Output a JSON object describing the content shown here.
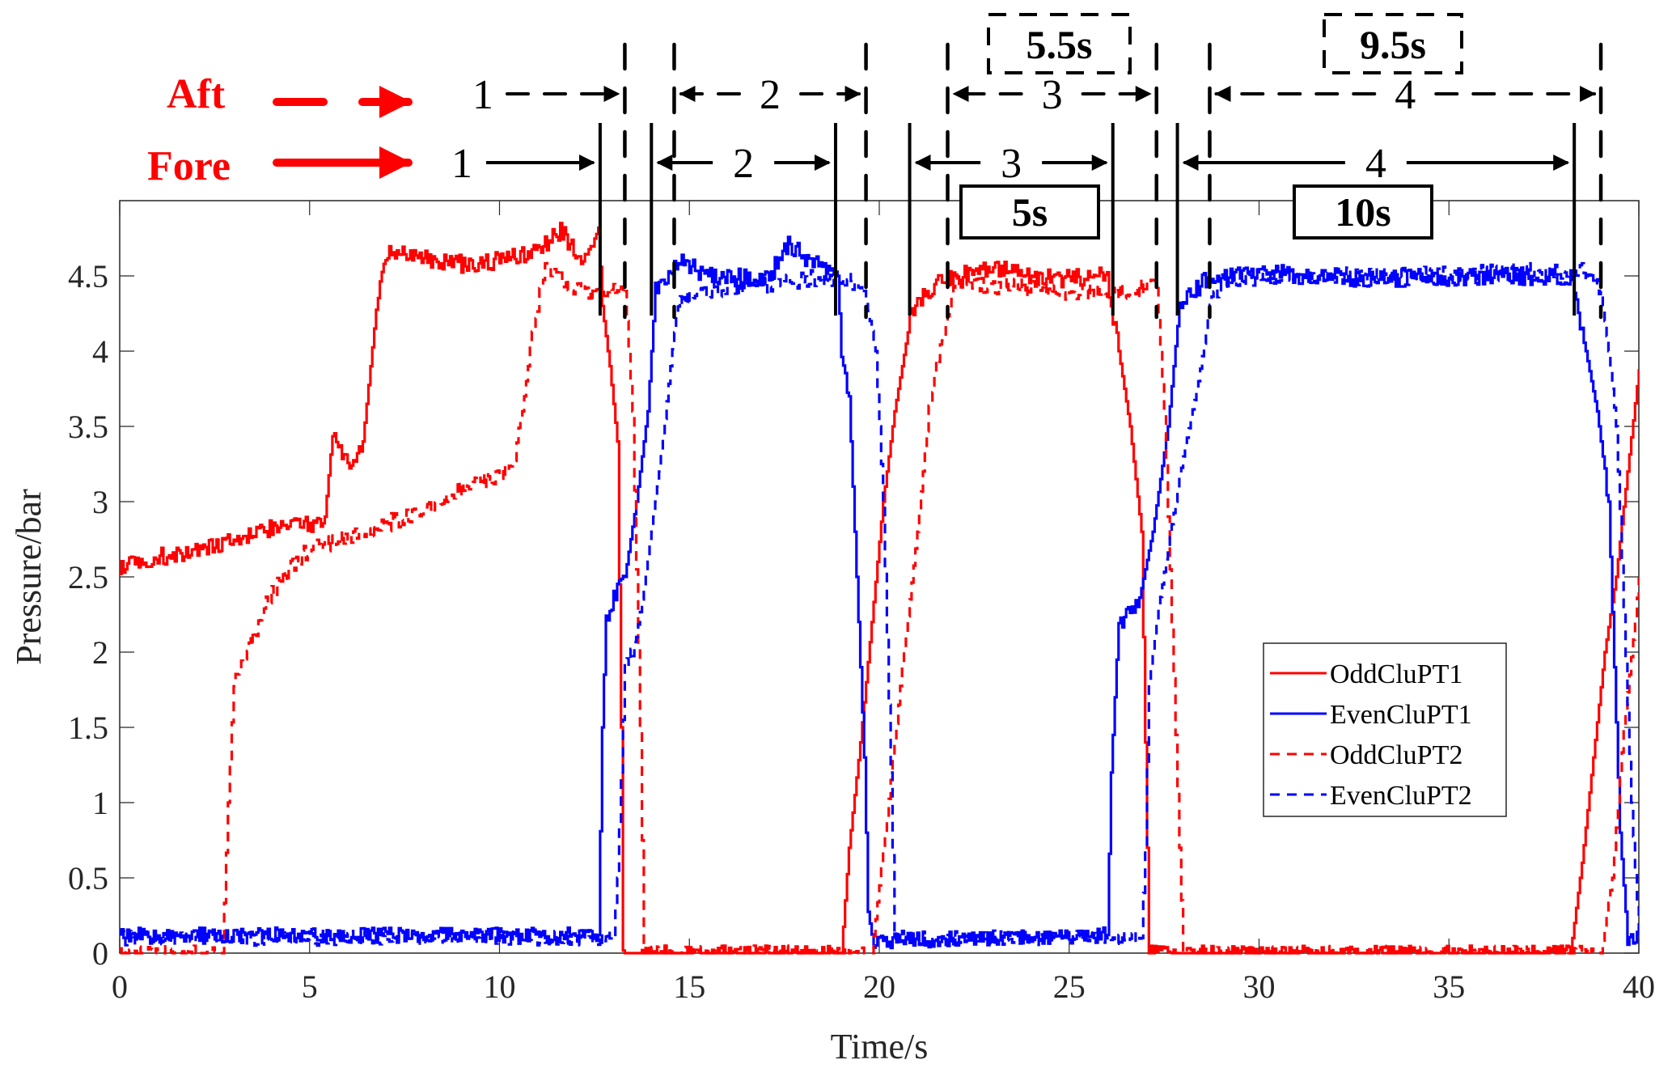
{
  "chart_data": {
    "type": "line",
    "xlabel": "Time/s",
    "ylabel": "Pressure/bar",
    "xlim": [
      0,
      40
    ],
    "ylim": [
      0,
      4.95
    ],
    "xticks": [
      0,
      5,
      10,
      15,
      20,
      25,
      30,
      35,
      40
    ],
    "xtick_labels": [
      "0",
      "5",
      "10",
      "15",
      "20",
      "25",
      "30",
      "35",
      "40"
    ],
    "yticks": [
      0,
      0.5,
      1,
      1.5,
      2,
      2.5,
      3,
      3.5,
      4,
      4.5
    ],
    "ytick_labels": [
      "0",
      "0.5",
      "1",
      "1.5",
      "2",
      "2.5",
      "3",
      "3.5",
      "4",
      "4.5"
    ],
    "grid": false,
    "legend_position": "lower-right",
    "colors": {
      "odd": "#ff0000",
      "even": "#0000ff",
      "annotation": "#000000",
      "axis": "#262626"
    },
    "series": [
      {
        "name": "OddCluPT1",
        "color": "#ff0000",
        "style": "solid",
        "x": [
          0,
          1,
          2,
          3,
          4,
          5,
          5.4,
          5.6,
          5.8,
          6.1,
          6.4,
          6.6,
          6.8,
          7.0,
          7.2,
          8,
          9,
          10,
          11,
          11.6,
          12.2,
          12.6,
          12.7,
          12.9,
          13.1,
          13.2,
          13.25,
          19.0,
          19.2,
          19.5,
          19.8,
          20.1,
          20.4,
          20.8,
          21.2,
          22,
          23,
          24,
          25,
          26,
          26.1,
          26.3,
          26.6,
          26.9,
          27.0,
          27.1,
          38.2,
          38.5,
          38.8,
          39.1,
          39.4,
          39.7,
          40
        ],
        "y": [
          2.58,
          2.63,
          2.68,
          2.74,
          2.82,
          2.85,
          2.9,
          3.45,
          3.35,
          3.22,
          3.4,
          3.9,
          4.4,
          4.65,
          4.66,
          4.62,
          4.58,
          4.6,
          4.68,
          4.8,
          4.6,
          4.82,
          4.3,
          3.9,
          3.4,
          1.5,
          0.0,
          0.0,
          0.7,
          1.4,
          2.2,
          3.0,
          3.6,
          4.2,
          4.4,
          4.5,
          4.55,
          4.5,
          4.48,
          4.5,
          4.3,
          4.0,
          3.5,
          2.8,
          1.4,
          0.0,
          0.0,
          0.6,
          1.3,
          2.0,
          2.5,
          3.2,
          3.88
        ]
      },
      {
        "name": "EvenCluPT1",
        "color": "#0000ff",
        "style": "solid",
        "x": [
          0,
          12.6,
          12.7,
          12.8,
          13.0,
          13.3,
          13.6,
          13.9,
          14.1,
          14.3,
          14.7,
          15.5,
          17,
          17.6,
          18.5,
          18.9,
          19.0,
          19.2,
          19.4,
          19.6,
          19.7,
          19.8,
          26.0,
          26.1,
          26.3,
          26.8,
          27.2,
          27.6,
          27.9,
          28.3,
          28.7,
          30,
          33,
          36,
          38.2,
          38.4,
          38.6,
          38.9,
          39.1,
          39.2,
          39.5,
          39.7,
          40
        ],
        "y": [
          0.12,
          0.12,
          1.5,
          2.2,
          2.35,
          2.5,
          3.0,
          3.6,
          4.4,
          4.45,
          4.6,
          4.5,
          4.48,
          4.7,
          4.55,
          4.5,
          4.0,
          3.7,
          2.5,
          1.3,
          0.3,
          0.08,
          0.12,
          1.2,
          2.2,
          2.3,
          2.8,
          3.5,
          4.3,
          4.4,
          4.5,
          4.52,
          4.48,
          4.5,
          4.5,
          4.25,
          4.0,
          3.6,
          3.2,
          3.0,
          0.8,
          0.1,
          0.12
        ]
      },
      {
        "name": "OddCluPT2",
        "color": "#ff0000",
        "style": "dashed",
        "x": [
          0,
          2.7,
          2.85,
          3.0,
          3.5,
          4,
          5,
          6,
          7,
          8,
          9,
          10,
          10.4,
          10.6,
          10.8,
          11.0,
          11.2,
          12,
          13,
          13.3,
          13.5,
          13.7,
          13.8,
          19.8,
          20.2,
          20.6,
          21.0,
          21.3,
          21.5,
          21.8,
          22,
          24,
          26,
          27.3,
          27.5,
          27.7,
          27.9,
          28.0,
          39.0,
          39.3,
          39.6,
          39.9,
          40
        ],
        "y": [
          0.0,
          0.0,
          1.0,
          1.8,
          2.1,
          2.4,
          2.7,
          2.75,
          2.85,
          2.95,
          3.1,
          3.15,
          3.3,
          3.6,
          4.0,
          4.3,
          4.55,
          4.4,
          4.42,
          4.4,
          3.6,
          1.5,
          0.0,
          0.0,
          0.9,
          1.9,
          2.8,
          3.6,
          3.9,
          4.2,
          4.45,
          4.42,
          4.38,
          4.45,
          3.6,
          2.2,
          0.7,
          0.0,
          0.0,
          0.5,
          1.5,
          2.2,
          2.5
        ]
      },
      {
        "name": "EvenCluPT2",
        "color": "#0000ff",
        "style": "dashed",
        "x": [
          0,
          13.0,
          13.1,
          13.3,
          13.6,
          13.9,
          14.2,
          14.5,
          14.7,
          15.5,
          17,
          19,
          19.6,
          19.9,
          20.1,
          20.3,
          20.4,
          26.9,
          27.0,
          27.1,
          27.3,
          27.6,
          28.0,
          28.4,
          28.7,
          29.0,
          30,
          35,
          38.5,
          39.0,
          39.2,
          39.4,
          39.6,
          39.8,
          40
        ],
        "y": [
          0.1,
          0.1,
          0.5,
          1.9,
          2.1,
          2.6,
          3.2,
          3.9,
          4.35,
          4.4,
          4.45,
          4.5,
          4.4,
          4.0,
          3.0,
          1.2,
          0.1,
          0.1,
          0.7,
          1.8,
          2.2,
          2.7,
          3.3,
          3.8,
          4.3,
          4.45,
          4.5,
          4.5,
          4.55,
          4.4,
          4.0,
          3.5,
          2.3,
          1.0,
          0.1
        ]
      }
    ],
    "annotations": {
      "aft_label": "Aft",
      "fore_label": "Fore",
      "fore_markers_s": [
        12.65,
        14.0,
        18.85,
        20.8,
        26.15,
        27.85,
        38.3
      ],
      "aft_markers_s": [
        13.3,
        14.6,
        19.65,
        21.8,
        27.3,
        28.7,
        39.0
      ],
      "fore_intervals": [
        {
          "label": "1",
          "from": null,
          "to": 12.65
        },
        {
          "label": "2",
          "from": 14.0,
          "to": 18.85
        },
        {
          "label": "3",
          "from": 20.8,
          "to": 26.15
        },
        {
          "label": "4",
          "from": 27.85,
          "to": 38.3
        }
      ],
      "aft_intervals": [
        {
          "label": "1",
          "from": null,
          "to": 13.3
        },
        {
          "label": "2",
          "from": 14.6,
          "to": 19.65
        },
        {
          "label": "3",
          "from": 21.8,
          "to": 27.3
        },
        {
          "label": "4",
          "from": 28.7,
          "to": 39.0
        }
      ],
      "fore_boxes": [
        {
          "text": "5s"
        },
        {
          "text": "10s"
        }
      ],
      "aft_boxes": [
        {
          "text": "5.5s"
        },
        {
          "text": "9.5s"
        }
      ]
    }
  }
}
